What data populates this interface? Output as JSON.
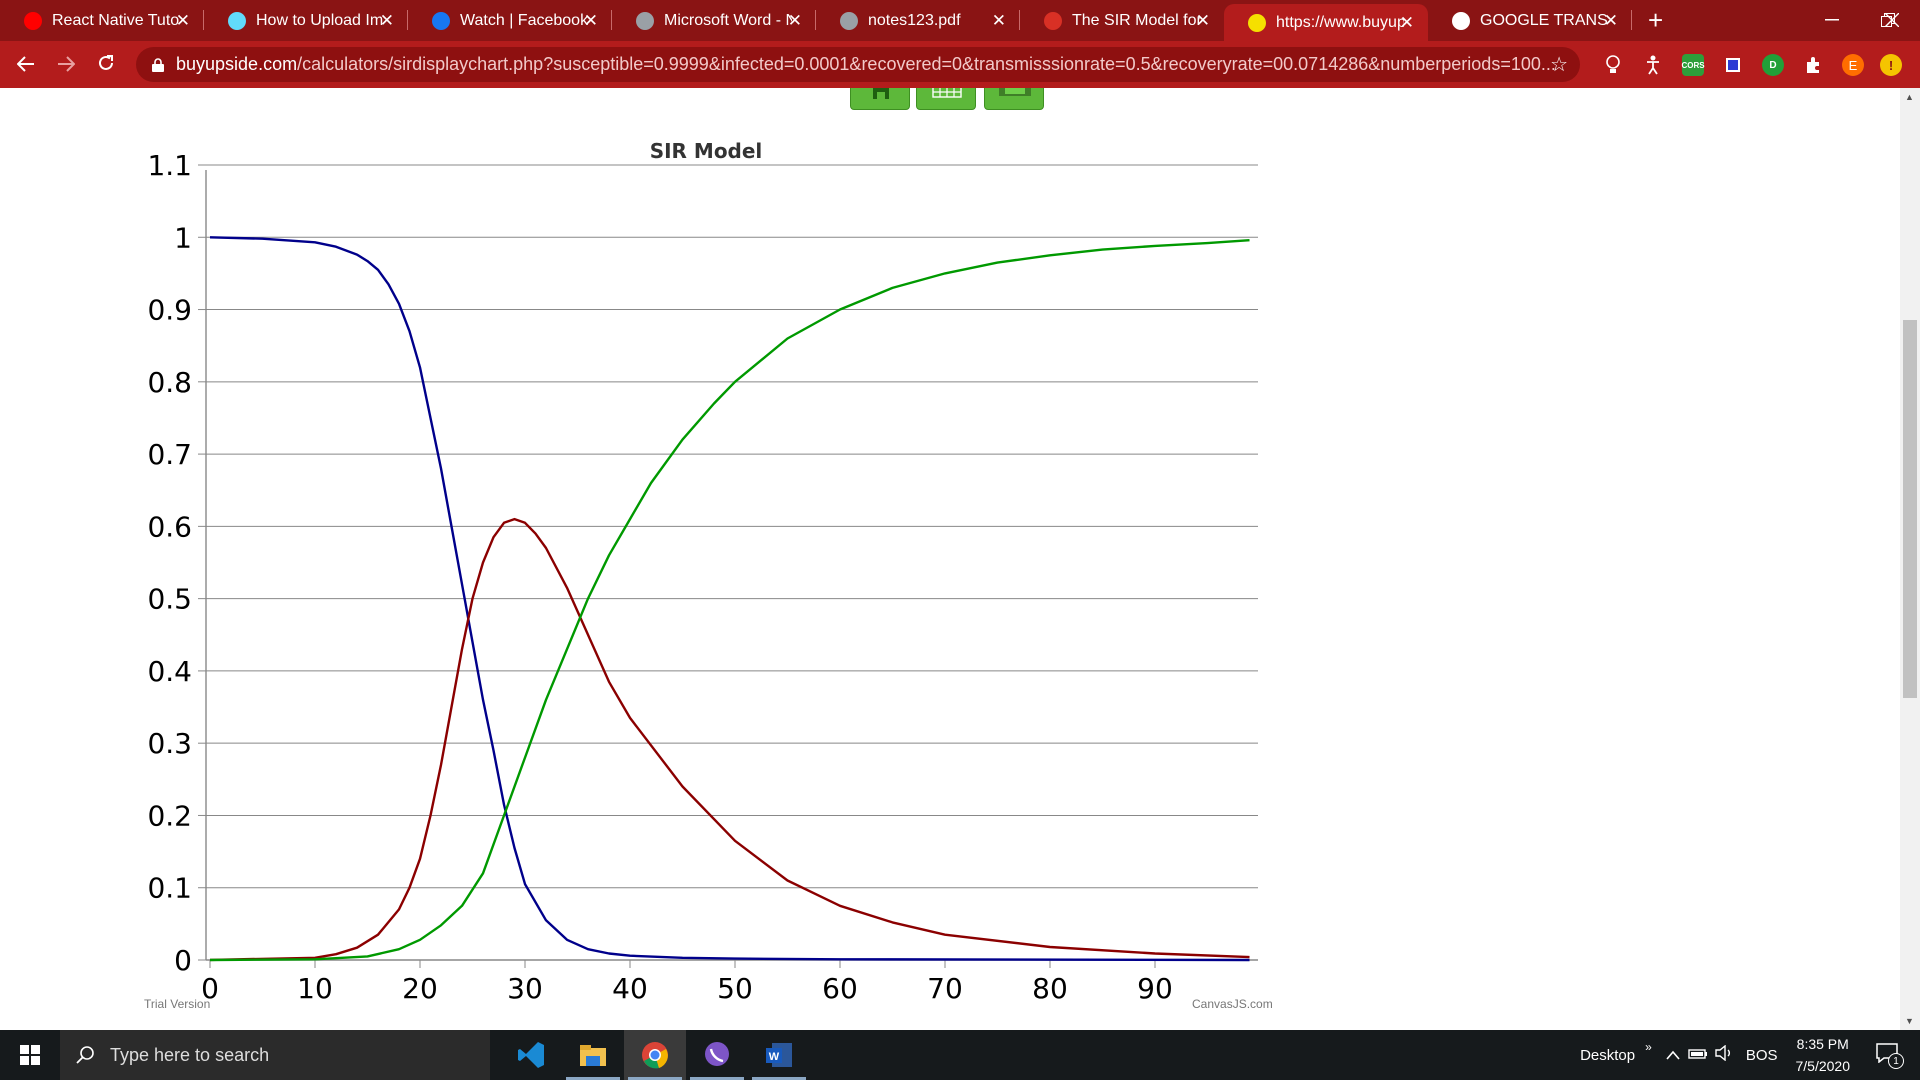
{
  "browser": {
    "tabs": [
      {
        "title": "React Native Tutor",
        "favicon": "youtube-icon",
        "color": "#ff0000"
      },
      {
        "title": "How to Upload Im",
        "favicon": "react-icon",
        "color": "#61dafb"
      },
      {
        "title": "Watch | Facebook",
        "favicon": "facebook-icon",
        "color": "#1877f2"
      },
      {
        "title": "Microsoft Word - N",
        "favicon": "globe-icon",
        "color": "#9aa0a6"
      },
      {
        "title": "notes123.pdf",
        "favicon": "globe-icon",
        "color": "#9aa0a6"
      },
      {
        "title": "The SIR Model for",
        "favicon": "virus-icon",
        "color": "#d93025"
      },
      {
        "title": "https://www.buyups",
        "favicon": "buyupside-icon",
        "color": "#f5e000"
      },
      {
        "title": "GOOGLE TRANSLA",
        "favicon": "google-icon",
        "color": "#ffffff"
      }
    ],
    "active_tab": 6,
    "new_tab_label": "+",
    "url_domain": "buyupside.com",
    "url_path": "/calculators/sirdisplaychart.php?susceptible=0.9999&infected=0.0001&recovered=0&transmisssionrate=0.5&recoveryrate=00.0714286&numberperiods=100...",
    "profile_initial": "E"
  },
  "chart_data": {
    "type": "line",
    "title": "SIR Model",
    "xlabel": "",
    "ylabel": "",
    "xlim": [
      0,
      100
    ],
    "ylim": [
      0,
      1.1
    ],
    "x_ticks": [
      0,
      10,
      20,
      30,
      40,
      50,
      60,
      70,
      80,
      90
    ],
    "y_ticks": [
      0,
      0.1,
      0.2,
      0.3,
      0.4,
      0.5,
      0.6,
      0.7,
      0.8,
      0.9,
      1,
      1.1
    ],
    "grid": true,
    "colors": {
      "susceptible": "#00008b",
      "infected": "#8b0000",
      "recovered": "#009900"
    },
    "series": [
      {
        "key": "susceptible",
        "x": [
          0,
          5,
          10,
          12,
          14,
          15,
          16,
          17,
          18,
          19,
          20,
          21,
          22,
          23,
          24,
          25,
          26,
          27,
          28,
          29,
          30,
          32,
          34,
          36,
          38,
          40,
          45,
          50,
          60,
          100
        ],
        "values": [
          1.0,
          0.998,
          0.993,
          0.987,
          0.976,
          0.967,
          0.955,
          0.935,
          0.908,
          0.87,
          0.82,
          0.75,
          0.68,
          0.6,
          0.52,
          0.44,
          0.36,
          0.29,
          0.215,
          0.155,
          0.105,
          0.055,
          0.028,
          0.015,
          0.009,
          0.006,
          0.003,
          0.002,
          0.001,
          0.0
        ]
      },
      {
        "key": "infected",
        "x": [
          0,
          10,
          12,
          14,
          16,
          18,
          19,
          20,
          21,
          22,
          23,
          24,
          25,
          26,
          27,
          28,
          29,
          30,
          31,
          32,
          34,
          36,
          38,
          40,
          45,
          50,
          55,
          60,
          65,
          70,
          80,
          90,
          100
        ],
        "values": [
          0.0001,
          0.003,
          0.008,
          0.017,
          0.035,
          0.07,
          0.1,
          0.14,
          0.2,
          0.27,
          0.35,
          0.43,
          0.5,
          0.55,
          0.585,
          0.605,
          0.61,
          0.605,
          0.59,
          0.57,
          0.515,
          0.45,
          0.385,
          0.335,
          0.24,
          0.165,
          0.11,
          0.075,
          0.052,
          0.035,
          0.018,
          0.009,
          0.004
        ]
      },
      {
        "key": "recovered",
        "x": [
          0,
          10,
          15,
          18,
          20,
          22,
          24,
          26,
          28,
          30,
          32,
          34,
          36,
          38,
          40,
          42,
          45,
          48,
          50,
          55,
          60,
          65,
          70,
          75,
          80,
          85,
          90,
          95,
          100
        ],
        "values": [
          0,
          0.001,
          0.005,
          0.015,
          0.028,
          0.048,
          0.075,
          0.12,
          0.2,
          0.28,
          0.36,
          0.43,
          0.5,
          0.56,
          0.61,
          0.66,
          0.72,
          0.77,
          0.8,
          0.86,
          0.9,
          0.93,
          0.95,
          0.965,
          0.975,
          0.983,
          0.988,
          0.992,
          0.996
        ]
      }
    ],
    "footer_left": "Trial Version",
    "footer_right": "CanvasJS.com"
  },
  "taskbar": {
    "search_placeholder": "Type here to search",
    "desktop_label": "Desktop",
    "lang": "BOS",
    "time": "8:35 PM",
    "date": "7/5/2020",
    "notification_count": "1",
    "chevron": "»"
  }
}
